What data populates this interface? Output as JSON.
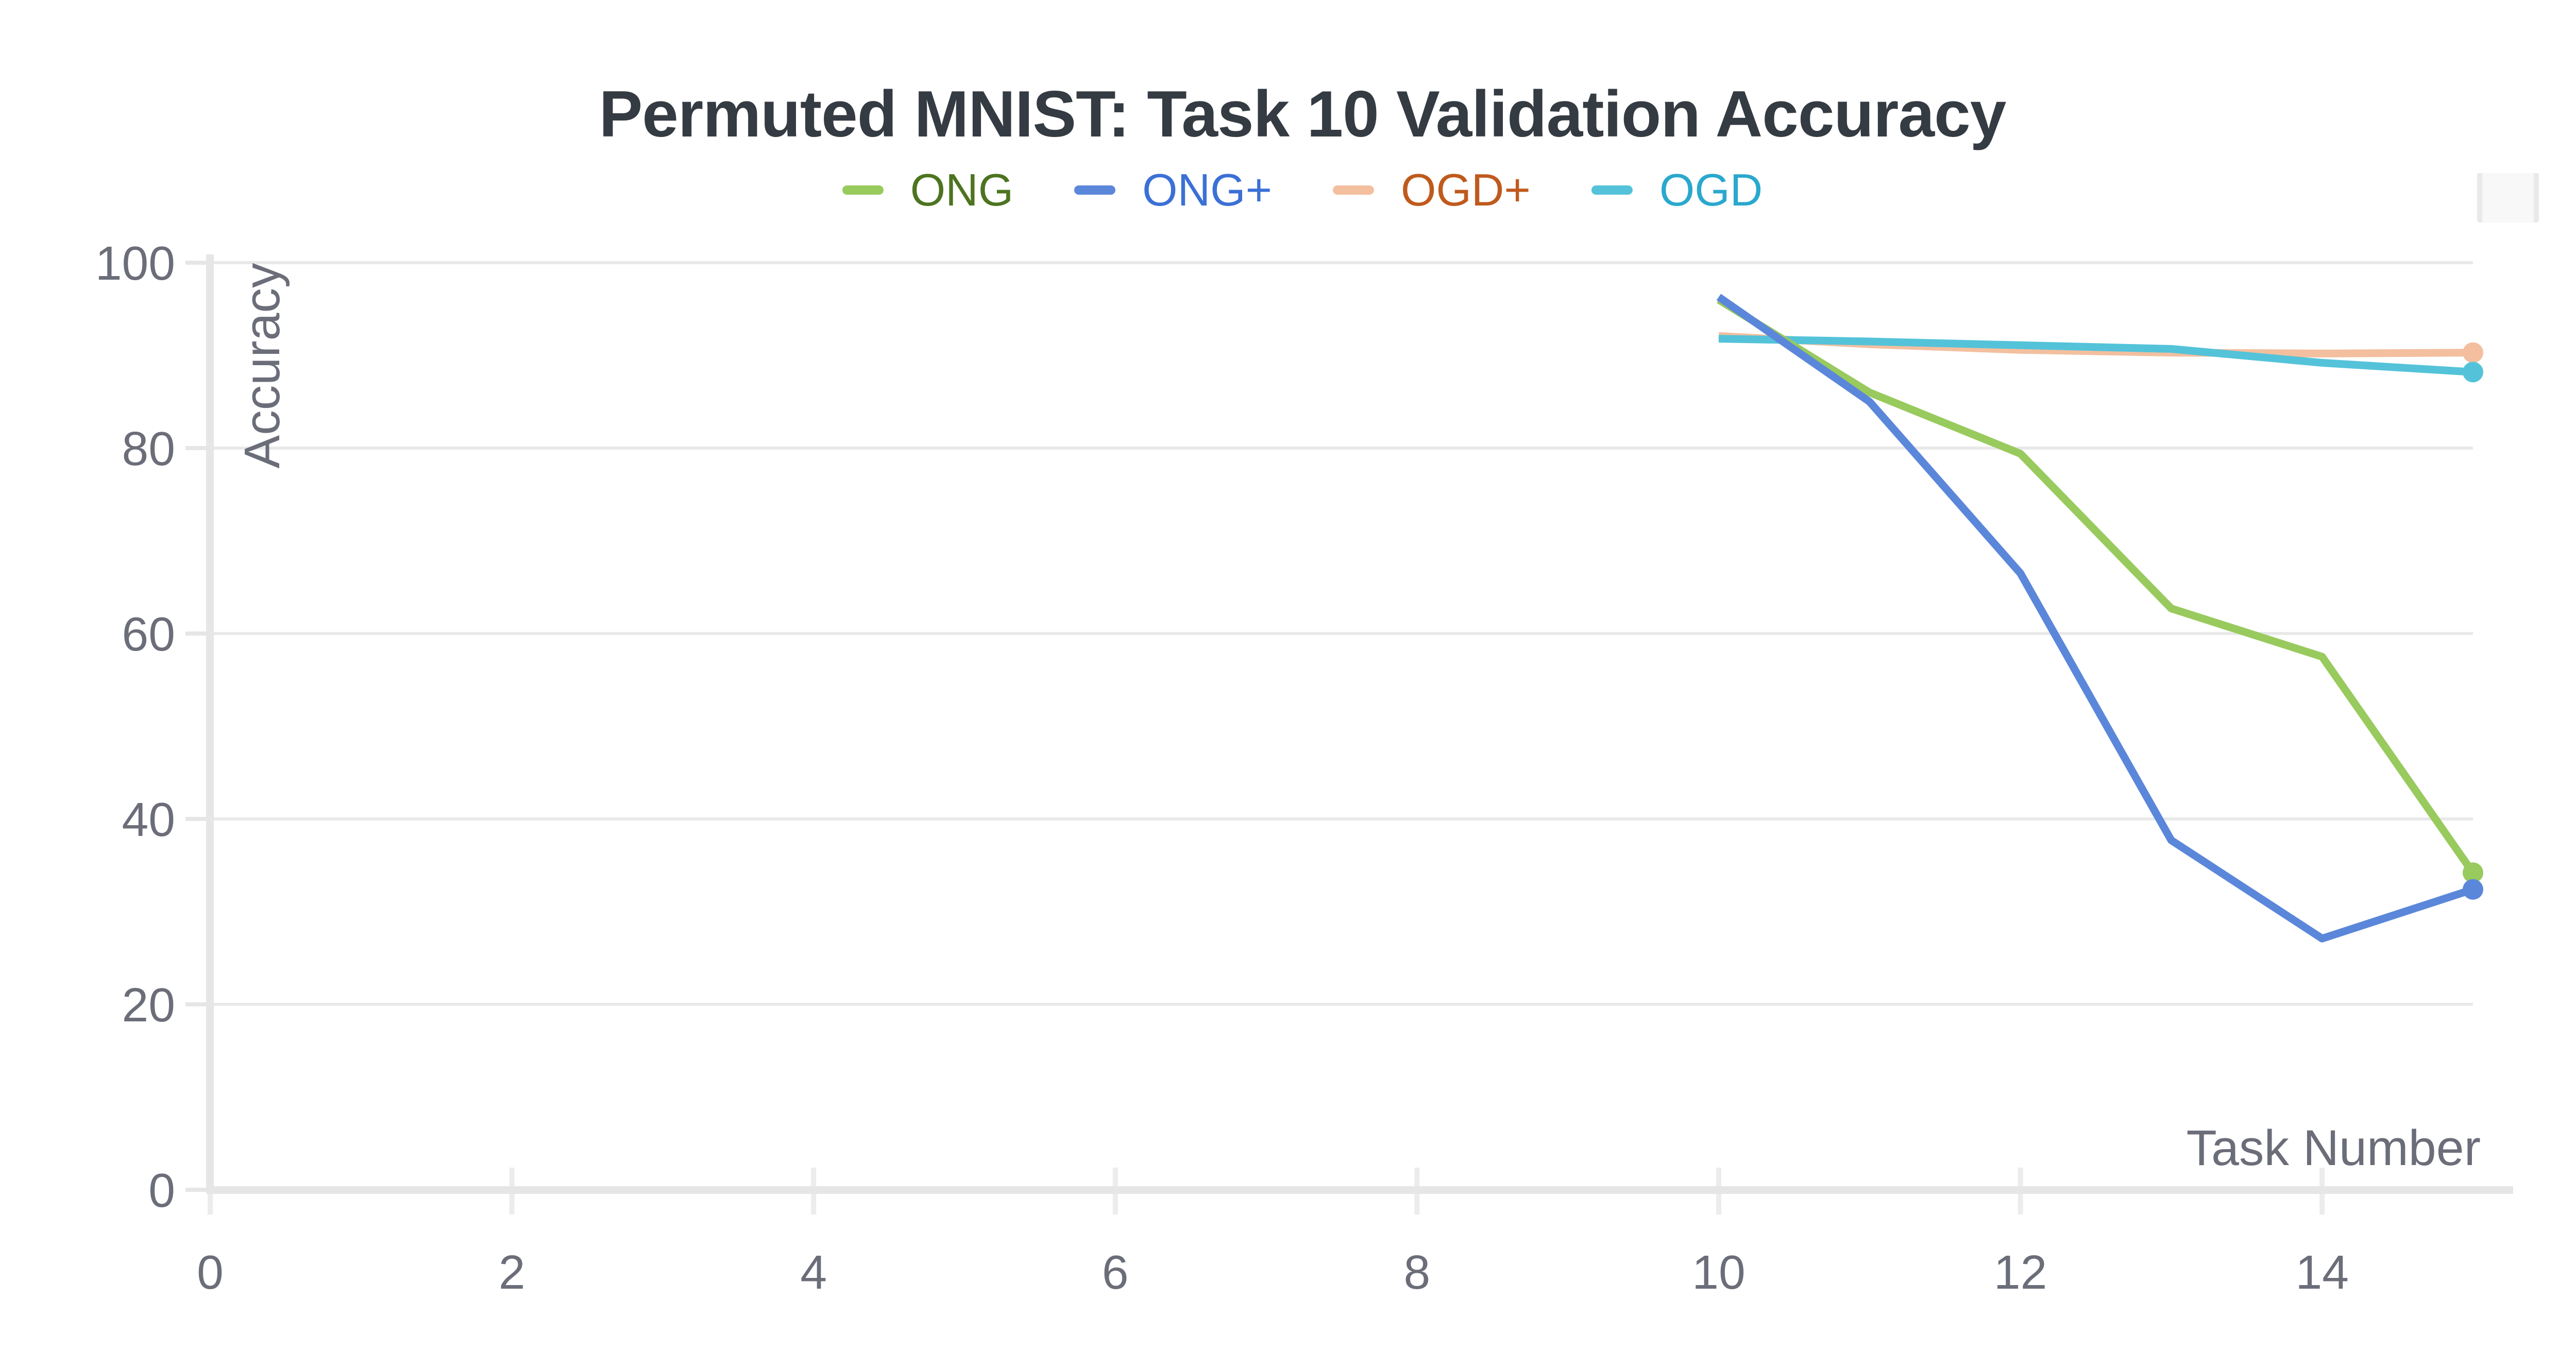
{
  "title": "Permuted MNIST: Task 10 Validation Accuracy",
  "colors": {
    "title_text": "#353b42",
    "axis_text": "#6b6e79",
    "gridline": "#e9e9e9",
    "axis_line": "#e6e6e6",
    "tick_mark": "#ececec",
    "background": "#ffffff",
    "options_button_fill": "#f8f8f8",
    "options_button_edge": "#e9e9e9"
  },
  "legend": {
    "items": [
      {
        "label": "ONG",
        "swatch_color": "#98ca5d",
        "text_color": "#4d7420"
      },
      {
        "label": "ONG+",
        "swatch_color": "#5b87da",
        "text_color": "#3b70d6"
      },
      {
        "label": "OGD+",
        "swatch_color": "#f3bf9f",
        "text_color": "#bf5a1d"
      },
      {
        "label": "OGD",
        "swatch_color": "#54c3d9",
        "text_color": "#2aa8cd"
      }
    ]
  },
  "chart_data": {
    "type": "line",
    "title": "Permuted MNIST: Task 10 Validation Accuracy",
    "xlabel": "Task Number",
    "ylabel": "Accuracy",
    "x": [
      10,
      11,
      12,
      13,
      14,
      15
    ],
    "series": [
      {
        "name": "ONG",
        "color": "#98ca5d",
        "values": [
          96.0,
          86.0,
          79.4,
          62.7,
          57.5,
          34.2
        ],
        "end_dot": true
      },
      {
        "name": "ONG+",
        "color": "#5b87da",
        "values": [
          96.3,
          85.0,
          66.5,
          37.7,
          27.1,
          32.4
        ],
        "end_dot": true
      },
      {
        "name": "OGD+",
        "color": "#f3bf9f",
        "values": [
          92.1,
          91.2,
          90.6,
          90.3,
          90.2,
          90.3
        ],
        "end_dot": true
      },
      {
        "name": "OGD",
        "color": "#54c3d9",
        "values": [
          91.8,
          91.5,
          91.1,
          90.7,
          89.2,
          88.2
        ],
        "end_dot": true
      }
    ],
    "draw_order": [
      "OGD+",
      "OGD",
      "ONG",
      "ONG+"
    ],
    "xticks": [
      0,
      2,
      4,
      6,
      8,
      10,
      12,
      14
    ],
    "yticks": [
      0,
      20,
      40,
      60,
      80,
      100
    ],
    "xlim": [
      0,
      15.3
    ],
    "ylim": [
      0,
      100
    ],
    "grid": "horizontal",
    "legend_position": "top"
  }
}
